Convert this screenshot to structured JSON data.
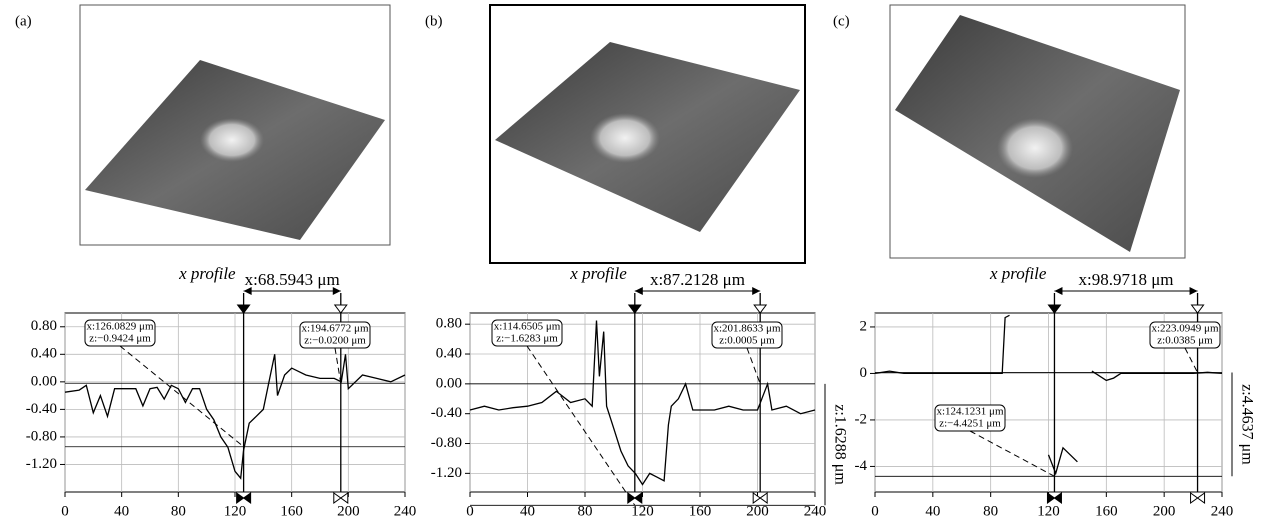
{
  "chart_data": [
    {
      "type": "line",
      "panel_label": "(a)",
      "profile_label": "x profile",
      "distance_label": "x:68.5943 μm",
      "x": [
        0,
        10,
        15,
        20,
        25,
        30,
        35,
        40,
        45,
        50,
        55,
        60,
        65,
        70,
        75,
        80,
        85,
        90,
        95,
        100,
        105,
        110,
        115,
        120,
        124,
        126,
        130,
        135,
        140,
        145,
        148,
        150,
        155,
        160,
        170,
        180,
        190,
        195,
        198,
        200,
        210,
        220,
        230,
        240
      ],
      "values": [
        -0.15,
        -0.12,
        -0.05,
        -0.45,
        -0.2,
        -0.5,
        -0.1,
        -0.1,
        -0.1,
        -0.1,
        -0.35,
        -0.1,
        -0.08,
        -0.25,
        -0.05,
        -0.1,
        -0.3,
        -0.1,
        -0.1,
        -0.4,
        -0.55,
        -0.8,
        -0.95,
        -1.3,
        -1.4,
        -1.0,
        -0.6,
        -0.5,
        -0.4,
        0.1,
        0.4,
        -0.2,
        0.1,
        0.2,
        0.1,
        0.05,
        0.05,
        0.0,
        0.4,
        -0.1,
        0.1,
        0.05,
        0.0,
        0.1
      ],
      "color": "#000000",
      "xlim": [
        0,
        240
      ],
      "xticks": [
        0,
        40,
        80,
        120,
        160,
        200,
        240
      ],
      "ylim": [
        -1.6,
        1.0
      ],
      "yticks": [
        {
          "value": 0.8,
          "label": "0.80"
        },
        {
          "value": 0.4,
          "label": "0.40"
        },
        {
          "value": 0,
          "label": "0.00"
        },
        {
          "value": -0.4,
          "label": "-0.40"
        },
        {
          "value": -0.8,
          "label": "-0.80"
        },
        {
          "value": -1.2,
          "label": "-1.20"
        }
      ],
      "grid": true,
      "cursors": [
        {
          "x": 126.0829,
          "z": -0.9424,
          "x_label": "x:126.0829 μm",
          "z_label": "z:−0.9424 μm"
        },
        {
          "x": 194.6772,
          "z": -0.02,
          "x_label": "x:194.6772 μm",
          "z_label": "z:−0.0200 μm"
        }
      ]
    },
    {
      "type": "line",
      "panel_label": "(b)",
      "profile_label": "x profile",
      "distance_label": "x:87.2128 μm",
      "z_span_label": "z:1.6288 μm",
      "x": [
        0,
        10,
        20,
        30,
        40,
        50,
        60,
        70,
        80,
        85,
        88,
        90,
        93,
        95,
        100,
        105,
        110,
        115,
        120,
        125,
        130,
        135,
        138,
        140,
        145,
        150,
        155,
        160,
        170,
        180,
        190,
        200,
        207,
        210,
        220,
        230,
        240
      ],
      "values": [
        -0.35,
        -0.3,
        -0.35,
        -0.32,
        -0.3,
        -0.25,
        -0.1,
        -0.25,
        -0.2,
        -0.3,
        0.85,
        0.1,
        0.7,
        -0.3,
        -0.6,
        -0.9,
        -1.1,
        -1.2,
        -1.35,
        -1.2,
        -1.25,
        -1.3,
        -0.55,
        -0.3,
        -0.2,
        0.0,
        -0.35,
        -0.35,
        -0.35,
        -0.3,
        -0.35,
        -0.35,
        0.0,
        -0.35,
        -0.3,
        -0.4,
        -0.35
      ],
      "color": "#000000",
      "xlim": [
        0,
        240
      ],
      "xticks": [
        0,
        40,
        80,
        120,
        160,
        200,
        240
      ],
      "ylim": [
        -1.45,
        0.95
      ],
      "yticks": [
        {
          "value": 0.8,
          "label": "0.80"
        },
        {
          "value": 0.4,
          "label": "0.40"
        },
        {
          "value": 0,
          "label": "0.00"
        },
        {
          "value": -0.4,
          "label": "-0.40"
        },
        {
          "value": -0.8,
          "label": "-0.80"
        },
        {
          "value": -1.2,
          "label": "-1.20"
        }
      ],
      "grid": true,
      "cursors": [
        {
          "x": 114.6505,
          "z": -1.6283,
          "x_label": "x:114.6505 μm",
          "z_label": "z:−1.6283 μm"
        },
        {
          "x": 201.8633,
          "z": 0.0005,
          "x_label": "x:201.8633 μm",
          "z_label": "z:0.0005 μm"
        }
      ]
    },
    {
      "type": "line",
      "panel_label": "(c)",
      "profile_label": "x profile",
      "distance_label": "x:98.9718 μm",
      "z_span_label": "z:4.4637 μm",
      "x": [
        0,
        10,
        20,
        40,
        60,
        80,
        88,
        90,
        93,
        95,
        120,
        125,
        130,
        135,
        140,
        145,
        150,
        160,
        165,
        170,
        180,
        200,
        220,
        230,
        240
      ],
      "values": [
        0,
        0.1,
        0,
        0,
        0,
        0,
        0,
        2.4,
        2.5,
        null,
        -3.5,
        -4.3,
        -3.2,
        -3.5,
        -3.8,
        null,
        0.1,
        -0.3,
        -0.2,
        0,
        0,
        0,
        0,
        0.05,
        0
      ],
      "color": "#000000",
      "xlim": [
        0,
        240
      ],
      "xticks": [
        0,
        40,
        80,
        120,
        160,
        200,
        240
      ],
      "ylim": [
        -5.1,
        2.6
      ],
      "yticks": [
        2,
        0,
        -2,
        -4
      ],
      "grid": true,
      "cursors": [
        {
          "x": 124.1231,
          "z": -4.4251,
          "x_label": "x:124.1231 μm",
          "z_label": "z:−4.4251 μm"
        },
        {
          "x": 223.0949,
          "z": 0.0385,
          "x_label": "x:223.0949 μm",
          "z_label": "z:0.0385 μm"
        }
      ]
    }
  ]
}
